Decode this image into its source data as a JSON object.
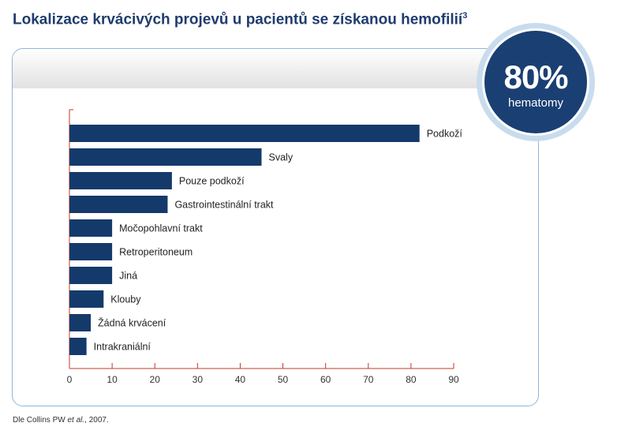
{
  "title": "Lokalizace krvácivých projevů u pacientů se získanou hemofilií",
  "title_superscript": "3",
  "badge": {
    "value": "80%",
    "label": "hematomy"
  },
  "source": {
    "prefix": "Dle Collins PW ",
    "italic": "et al.",
    "suffix": ", 2007."
  },
  "colors": {
    "bar": "#143a6b",
    "axis": "#c0392b",
    "title": "#1f3c6e",
    "badge": "#1a3f73",
    "panel_border": "#8fb5da"
  },
  "chart_data": {
    "type": "bar",
    "orientation": "horizontal",
    "categories": [
      "Podkoží",
      "Svaly",
      "Pouze podkoží",
      "Gastrointestinální trakt",
      "Močopohlavní trakt",
      "Retroperitoneum",
      "Jiná",
      "Klouby",
      "Žádná krvácení",
      "Intrakraniální"
    ],
    "values": [
      82,
      45,
      24,
      23,
      10,
      10,
      10,
      8,
      5,
      4
    ],
    "xlim": [
      0,
      90
    ],
    "xticks": [
      0,
      10,
      20,
      30,
      40,
      50,
      60,
      70,
      80,
      90
    ],
    "title": "",
    "xlabel": "",
    "ylabel": "",
    "grid": false,
    "legend": "none"
  }
}
